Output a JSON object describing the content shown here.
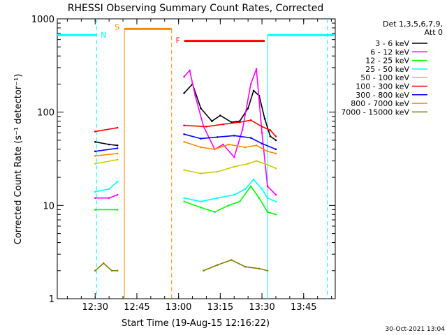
{
  "chart_data": {
    "type": "line",
    "title": "RHESSI Observing Summary Count Rates, Corrected",
    "xlabel": "Start Time (19-Aug-15 12:16:22)",
    "ylabel": "Corrected Count Rate (s⁻¹ detector⁻¹)",
    "yscale": "log",
    "ylim": [
      1,
      1000
    ],
    "xlim": [
      "12:16:22",
      "13:56:22"
    ],
    "x_ticks": [
      "12:30",
      "12:45",
      "13:00",
      "13:15",
      "13:30",
      "13:45"
    ],
    "y_ticks": [
      "1",
      "10",
      "100",
      "1000"
    ],
    "timestamp": "30-Oct-2021 13:04",
    "legend_header": [
      "Det 1,3,5,6,7,9,",
      "Att 0"
    ],
    "legend_position": "right",
    "series": [
      {
        "name": "3 - 6 keV",
        "color": "#000000",
        "x": [
          "12:30:00",
          "12:35:00",
          "12:38:00",
          "13:02:00",
          "13:05:00",
          "13:08:00",
          "13:12:00",
          "13:15:00",
          "13:19:00",
          "13:22:00",
          "13:25:00",
          "13:27:00",
          "13:29:00",
          "13:31:00",
          "13:33:00",
          "13:35:00"
        ],
        "y": [
          48,
          45,
          44,
          160,
          200,
          110,
          80,
          92,
          78,
          80,
          110,
          170,
          150,
          85,
          55,
          50
        ]
      },
      {
        "name": "6 - 12 keV",
        "color": "#ff00ff",
        "x": [
          "12:30:00",
          "12:35:00",
          "12:38:00",
          "13:02:00",
          "13:04:00",
          "13:06:00",
          "13:09:00",
          "13:13:00",
          "13:16:00",
          "13:20:00",
          "13:23:00",
          "13:26:00",
          "13:28:00",
          "13:30:00",
          "13:32:00",
          "13:35:00"
        ],
        "y": [
          12,
          12,
          13,
          240,
          280,
          150,
          70,
          40,
          45,
          33,
          65,
          200,
          290,
          60,
          16,
          13
        ]
      },
      {
        "name": "12 - 25 keV",
        "color": "#00ff00",
        "x": [
          "12:30:00",
          "12:38:00",
          "13:02:00",
          "13:08:00",
          "13:13:00",
          "13:18:00",
          "13:22:00",
          "13:26:00",
          "13:29:00",
          "13:32:00",
          "13:35:00"
        ],
        "y": [
          9,
          9,
          11,
          9.5,
          8.5,
          10,
          11,
          16,
          12,
          8.5,
          8
        ]
      },
      {
        "name": "25 - 50 keV",
        "color": "#00ffff",
        "x": [
          "12:30:00",
          "12:35:00",
          "12:38:00",
          "13:02:00",
          "13:08:00",
          "13:14:00",
          "13:20:00",
          "13:24:00",
          "13:27:00",
          "13:30:00",
          "13:32:00",
          "13:35:00"
        ],
        "y": [
          14,
          15,
          18,
          12,
          11,
          12,
          13,
          15,
          19,
          15,
          12,
          11
        ]
      },
      {
        "name": "50 - 100 keV",
        "color": "#cccc00",
        "x": [
          "12:30:00",
          "12:38:00",
          "13:02:00",
          "13:08:00",
          "13:14:00",
          "13:20:00",
          "13:25:00",
          "13:28:00",
          "13:31:00",
          "13:35:00"
        ],
        "y": [
          28,
          31,
          24,
          22,
          23,
          26,
          28,
          30,
          28,
          25
        ]
      },
      {
        "name": "100 - 300 keV",
        "color": "#ff0000",
        "x": [
          "12:30:00",
          "12:38:00",
          "13:02:00",
          "13:10:00",
          "13:16:00",
          "13:22:00",
          "13:26:00",
          "13:30:00",
          "13:33:00",
          "13:35:00"
        ],
        "y": [
          62,
          68,
          72,
          70,
          74,
          78,
          82,
          70,
          64,
          55
        ]
      },
      {
        "name": "300 - 800 keV",
        "color": "#0000ff",
        "x": [
          "12:30:00",
          "12:38:00",
          "13:02:00",
          "13:08:00",
          "13:14:00",
          "13:20:00",
          "13:26:00",
          "13:30:00",
          "13:35:00"
        ],
        "y": [
          38,
          41,
          58,
          52,
          54,
          56,
          53,
          46,
          40
        ]
      },
      {
        "name": "800 - 7000 keV",
        "color": "#ff8800",
        "x": [
          "12:30:00",
          "12:38:00",
          "13:02:00",
          "13:08:00",
          "13:13:00",
          "13:18:00",
          "13:24:00",
          "13:28:00",
          "13:32:00",
          "13:35:00"
        ],
        "y": [
          34,
          36,
          48,
          42,
          40,
          45,
          42,
          44,
          38,
          36
        ]
      },
      {
        "name": "7000 - 15000 keV",
        "color": "#808000",
        "x": [
          "12:30:00",
          "12:33:00",
          "12:36:00",
          "12:38:00",
          "13:09:00",
          "13:14:00",
          "13:19:00",
          "13:24:00",
          "13:29:00",
          "13:32:00"
        ],
        "y": [
          2,
          2.4,
          2,
          2,
          2,
          2.3,
          2.6,
          2.2,
          2.1,
          2
        ]
      }
    ],
    "flag_bars": [
      {
        "label": "N",
        "color": "#00ffff",
        "intervals": [
          [
            "12:16:22",
            "12:30:30"
          ],
          [
            "13:32:00",
            "13:56:00"
          ]
        ],
        "level": 670
      },
      {
        "label": "S",
        "color": "#ff8800",
        "intervals": [
          [
            "12:40:30",
            "12:57:30"
          ]
        ],
        "level": 780
      },
      {
        "label": "F",
        "color": "#ff0000",
        "intervals": [
          [
            "13:02:00",
            "13:31:00"
          ]
        ],
        "level": 580
      }
    ]
  }
}
